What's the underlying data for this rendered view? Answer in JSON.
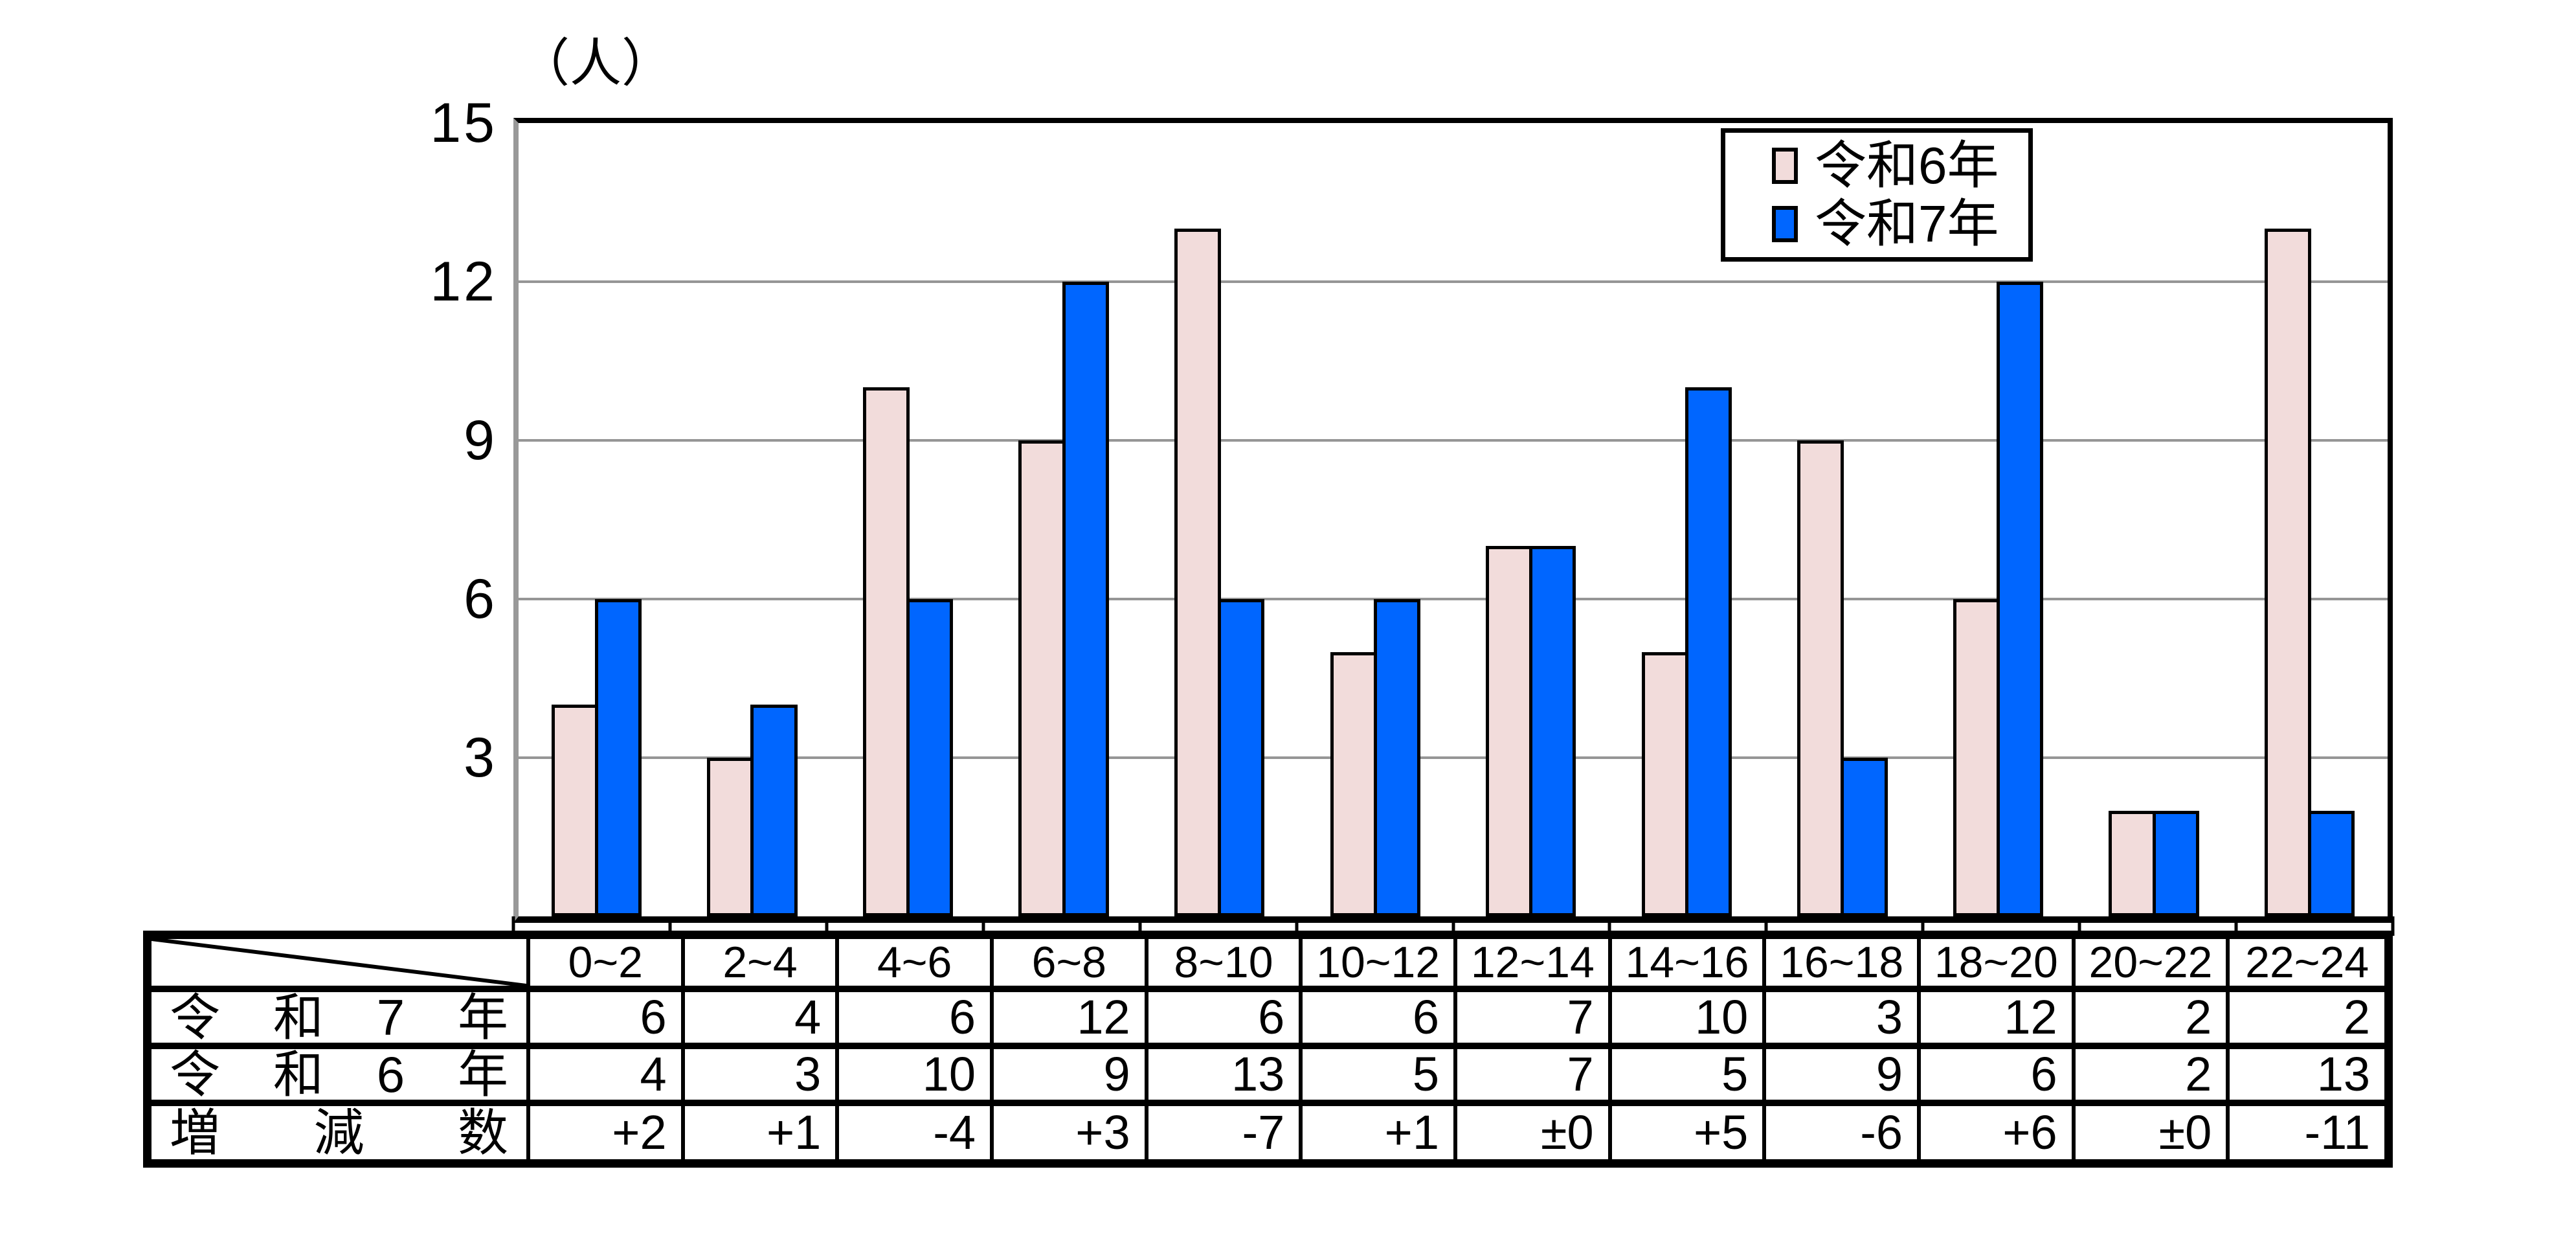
{
  "chart": {
    "unit_label": "（人）",
    "y_ticks": [
      "15",
      "12",
      "9",
      "6",
      "3"
    ]
  },
  "chart_data": {
    "type": "bar",
    "title": "",
    "xlabel": "",
    "ylabel": "（人）",
    "ylim": [
      0,
      15
    ],
    "grid": true,
    "gridline_values": [
      3,
      6,
      9,
      12
    ],
    "legend_position": "top-right",
    "categories": [
      "0~2",
      "2~4",
      "4~6",
      "6~8",
      "8~10",
      "10~12",
      "12~14",
      "14~16",
      "16~18",
      "18~20",
      "20~22",
      "22~24"
    ],
    "series": [
      {
        "name": "令和6年",
        "color": "#F2DCDB",
        "values": [
          4,
          3,
          10,
          9,
          13,
          5,
          7,
          5,
          9,
          6,
          2,
          13
        ]
      },
      {
        "name": "令和7年",
        "color": "#0066FF",
        "values": [
          6,
          4,
          6,
          12,
          6,
          6,
          7,
          10,
          3,
          12,
          2,
          2
        ]
      }
    ],
    "colors": {
      "gridline": "#969696",
      "axis_line": "#999999",
      "bar_border": "#000000"
    }
  },
  "table": {
    "corner_label": "",
    "columns": [
      "0~2",
      "2~4",
      "4~6",
      "6~8",
      "8~10",
      "10~12",
      "12~14",
      "14~16",
      "16~18",
      "18~20",
      "20~22",
      "22~24"
    ],
    "rows": [
      {
        "label": "令和7年",
        "values": [
          "6",
          "4",
          "6",
          "12",
          "6",
          "6",
          "7",
          "10",
          "3",
          "12",
          "2",
          "2"
        ]
      },
      {
        "label": "令和6年",
        "values": [
          "4",
          "3",
          "10",
          "9",
          "13",
          "5",
          "7",
          "5",
          "9",
          "6",
          "2",
          "13"
        ]
      },
      {
        "label": "増減数",
        "values": [
          "+2",
          "+1",
          "-4",
          "+3",
          "-7",
          "+1",
          "±0",
          "+5",
          "-6",
          "+6",
          "±0",
          "-11"
        ]
      }
    ]
  }
}
